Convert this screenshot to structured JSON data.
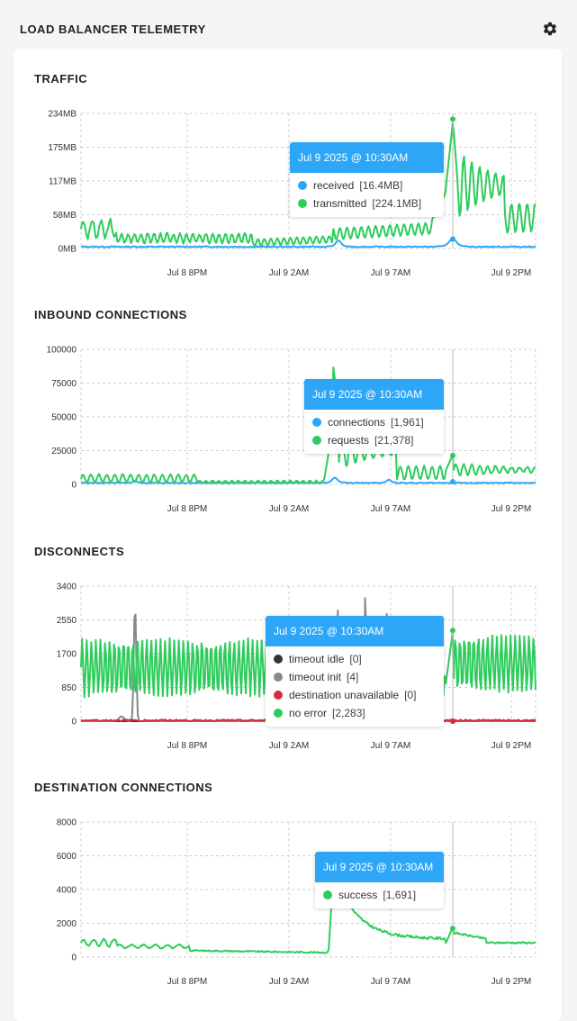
{
  "header": {
    "title": "LOAD BALANCER TELEMETRY",
    "settings_icon": "gear-icon"
  },
  "colors": {
    "received": "#2ea6f7",
    "transmitted": "#2ecc5c",
    "timeout_idle": "#333333",
    "timeout_init": "#888888",
    "destination_unavailable": "#d62b3b",
    "no_error": "#2ecc5c",
    "tooltip_header": "#2ea6f7",
    "grid": "#cccccc"
  },
  "x_ticks": [
    "Jul 8 8PM",
    "Jul 9 2AM",
    "Jul 9 7AM",
    "Jul 9 2PM"
  ],
  "panels": [
    {
      "id": "traffic",
      "title": "TRAFFIC",
      "chart_data": {
        "type": "line",
        "title": "TRAFFIC",
        "x_ticks": [
          "Jul 8 8PM",
          "Jul 9 2AM",
          "Jul 9 7AM",
          "Jul 9 2PM"
        ],
        "y_ticks": [
          "0MB",
          "58MB",
          "117MB",
          "175MB",
          "234MB"
        ],
        "ylim": [
          0,
          234
        ],
        "unit": "MB",
        "grid": true,
        "series": [
          {
            "name": "received",
            "color": "#2ea6f7"
          },
          {
            "name": "transmitted",
            "color": "#2ecc5c"
          }
        ],
        "tooltip": {
          "time": "Jul 9 2025 @ 10:30AM",
          "rows": [
            {
              "name": "received",
              "value": "[16.4MB]",
              "color": "#2ea6f7"
            },
            {
              "name": "transmitted",
              "value": "[224.1MB]",
              "color": "#2ecc5c"
            }
          ],
          "points": [
            16.4,
            224.1
          ]
        }
      }
    },
    {
      "id": "inbound",
      "title": "INBOUND CONNECTIONS",
      "chart_data": {
        "type": "line",
        "title": "INBOUND CONNECTIONS",
        "x_ticks": [
          "Jul 8 8PM",
          "Jul 9 2AM",
          "Jul 9 7AM",
          "Jul 9 2PM"
        ],
        "y_ticks": [
          "0",
          "25000",
          "50000",
          "75000",
          "100000"
        ],
        "ylim": [
          0,
          100000
        ],
        "grid": true,
        "series": [
          {
            "name": "connections",
            "color": "#2ea6f7"
          },
          {
            "name": "requests",
            "color": "#2ecc5c"
          }
        ],
        "tooltip": {
          "time": "Jul 9 2025 @ 10:30AM",
          "rows": [
            {
              "name": "connections",
              "value": "[1,961]",
              "color": "#2ea6f7"
            },
            {
              "name": "requests",
              "value": "[21,378]",
              "color": "#2ecc5c"
            }
          ],
          "points": [
            1961,
            21378
          ]
        }
      }
    },
    {
      "id": "disconnects",
      "title": "DISCONNECTS",
      "chart_data": {
        "type": "line",
        "title": "DISCONNECTS",
        "x_ticks": [
          "Jul 8 8PM",
          "Jul 9 2AM",
          "Jul 9 7AM",
          "Jul 9 2PM"
        ],
        "y_ticks": [
          "0",
          "850",
          "1700",
          "2550",
          "3400"
        ],
        "ylim": [
          0,
          3400
        ],
        "grid": true,
        "series": [
          {
            "name": "timeout idle",
            "color": "#333333"
          },
          {
            "name": "timeout init",
            "color": "#888888"
          },
          {
            "name": "destination unavailable",
            "color": "#d62b3b"
          },
          {
            "name": "no error",
            "color": "#2ecc5c"
          }
        ],
        "tooltip": {
          "time": "Jul 9 2025 @ 10:30AM",
          "rows": [
            {
              "name": "timeout idle",
              "value": "[0]",
              "color": "#333333"
            },
            {
              "name": "timeout init",
              "value": "[4]",
              "color": "#888888"
            },
            {
              "name": "destination unavailable",
              "value": "[0]",
              "color": "#d62b3b"
            },
            {
              "name": "no error",
              "value": "[2,283]",
              "color": "#2ecc5c"
            }
          ],
          "points": [
            0,
            4,
            0,
            2283
          ]
        }
      }
    },
    {
      "id": "destination",
      "title": "DESTINATION CONNECTIONS",
      "chart_data": {
        "type": "line",
        "title": "DESTINATION CONNECTIONS",
        "x_ticks": [
          "Jul 8 8PM",
          "Jul 9 2AM",
          "Jul 9 7AM",
          "Jul 9 2PM"
        ],
        "y_ticks": [
          "0",
          "2000",
          "4000",
          "6000",
          "8000"
        ],
        "ylim": [
          0,
          8000
        ],
        "grid": true,
        "series": [
          {
            "name": "success",
            "color": "#2ecc5c"
          }
        ],
        "tooltip": {
          "time": "Jul 9 2025 @ 10:30AM",
          "rows": [
            {
              "name": "success",
              "value": "[1,691]",
              "color": "#2ecc5c"
            }
          ],
          "points": [
            1691
          ]
        }
      }
    }
  ]
}
